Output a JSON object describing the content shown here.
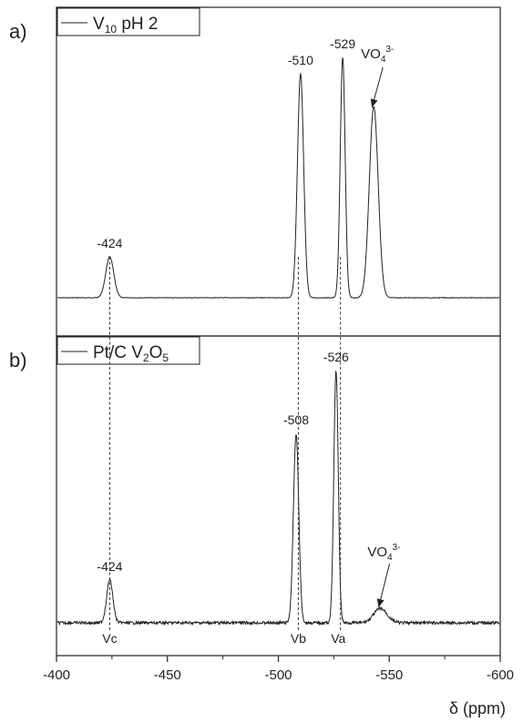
{
  "chart_data": {
    "type": "line",
    "xlabel": "δ (ppm)",
    "xlim": [
      -400,
      -600
    ],
    "x_ticks": [
      "-400",
      "-450",
      "-500",
      "-550",
      "-600"
    ],
    "x_tick_values": [
      -400,
      -450,
      -500,
      -550,
      -600
    ],
    "panels": [
      {
        "panel_label": "a)",
        "legend": {
          "name_main": "V",
          "name_sub": "10",
          "name_tail": " pH 2"
        },
        "peaks": [
          {
            "x": -424,
            "height": 0.15,
            "width": 1.8
          },
          {
            "x": -510,
            "height": 0.82,
            "width": 1.4
          },
          {
            "x": -529,
            "height": 0.88,
            "width": 1.1
          },
          {
            "x": -543,
            "height": 0.7,
            "width": 2.0
          }
        ],
        "peak_labels": [
          "-424",
          "-510",
          "-529"
        ],
        "peak_label_values": [
          -424,
          -510,
          -529
        ],
        "annotation": {
          "main": "VO",
          "sub": "4",
          "sup": "3-",
          "x": -543
        }
      },
      {
        "panel_label": "b)",
        "legend": {
          "name_main": "Pt/C V",
          "name_sub": "2",
          "name_mid": "O",
          "name_sub2": "5"
        },
        "peaks": [
          {
            "x": -424,
            "height": 0.15,
            "width": 1.4
          },
          {
            "x": -508,
            "height": 0.66,
            "width": 1.2
          },
          {
            "x": -526,
            "height": 0.88,
            "width": 1.0
          },
          {
            "x": -546,
            "height": 0.05,
            "width": 3.0
          }
        ],
        "peak_labels": [
          "-424",
          "-508",
          "-526"
        ],
        "peak_label_values": [
          -424,
          -508,
          -526
        ],
        "annotation": {
          "main": "VO",
          "sub": "4",
          "sup": "3-",
          "x": -546
        },
        "site_labels": [
          {
            "text": "Vc",
            "x": -424
          },
          {
            "text": "Vb",
            "x": -509
          },
          {
            "text": "Va",
            "x": -527
          }
        ]
      }
    ],
    "reference_lines_x": [
      -424,
      -509,
      -528
    ]
  }
}
